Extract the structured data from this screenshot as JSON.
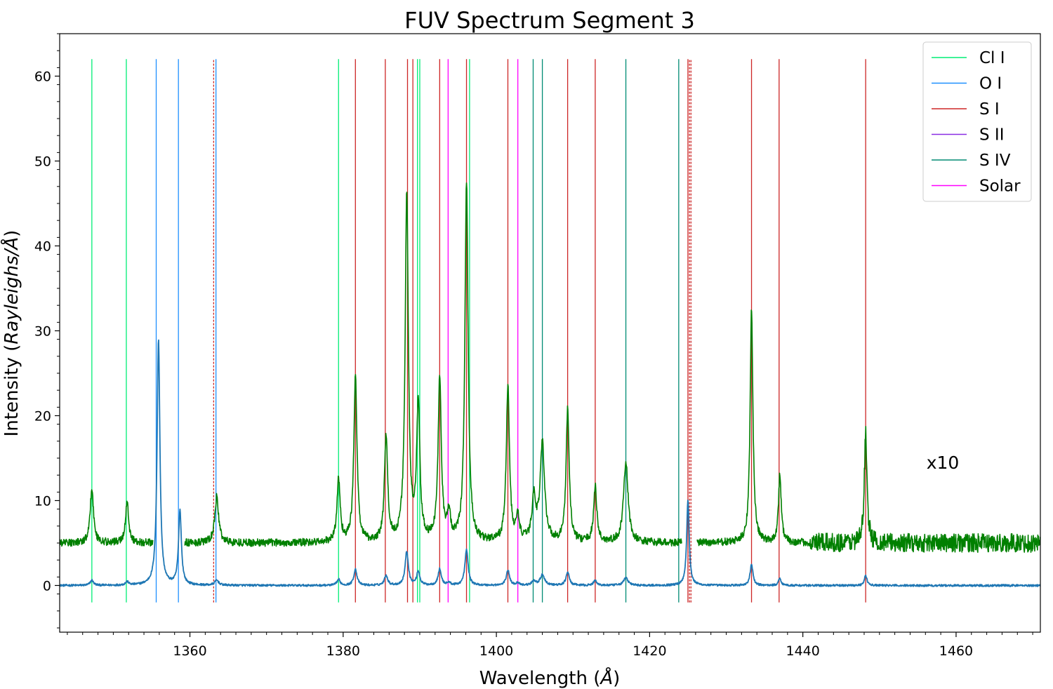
{
  "chart_data": {
    "type": "line",
    "title": "FUV Spectrum Segment 3",
    "xlabel_prefix": "Wavelength (",
    "xlabel_unit": "Å",
    "xlabel_suffix": ")",
    "ylabel_prefix": "Intensity (",
    "ylabel_unit": "Rayleighs/Å",
    "ylabel_suffix": ")",
    "xlim": [
      1343,
      1471
    ],
    "ylim": [
      -5.5,
      65
    ],
    "x_ticks": [
      1360,
      1380,
      1400,
      1420,
      1440,
      1460
    ],
    "y_ticks": [
      0,
      10,
      20,
      30,
      40,
      50,
      60
    ],
    "annotation": "x10",
    "legend_position": "upper right",
    "series": [
      {
        "name": "",
        "color": "#1f77b4",
        "baseline": 0.0,
        "noise": 0.12,
        "peaks": [
          [
            1347.2,
            0.6,
            0.25
          ],
          [
            1351.8,
            0.4,
            0.25
          ],
          [
            1355.9,
            29.0,
            0.22
          ],
          [
            1358.7,
            8.8,
            0.22
          ],
          [
            1363.5,
            0.6,
            0.3
          ],
          [
            1379.4,
            0.7,
            0.25
          ],
          [
            1381.6,
            1.9,
            0.25
          ],
          [
            1385.6,
            1.2,
            0.25
          ],
          [
            1388.3,
            4.0,
            0.25
          ],
          [
            1389.8,
            1.6,
            0.25
          ],
          [
            1392.6,
            1.9,
            0.25
          ],
          [
            1393.8,
            0.3,
            0.25
          ],
          [
            1396.1,
            4.2,
            0.25
          ],
          [
            1401.5,
            1.8,
            0.25
          ],
          [
            1402.8,
            0.3,
            0.25
          ],
          [
            1404.9,
            0.5,
            0.3
          ],
          [
            1406.0,
            1.2,
            0.35
          ],
          [
            1409.3,
            1.6,
            0.25
          ],
          [
            1412.9,
            0.6,
            0.25
          ],
          [
            1416.9,
            0.9,
            0.35
          ],
          [
            1425.0,
            10.0,
            0.2
          ],
          [
            1433.3,
            2.5,
            0.22
          ],
          [
            1437.0,
            0.8,
            0.22
          ],
          [
            1448.2,
            1.2,
            0.2
          ]
        ]
      },
      {
        "name": "",
        "color": "#008000",
        "baseline": 5.0,
        "noise": 0.45,
        "gaps": [
          [
            1355.2,
            1359.3
          ],
          [
            1424.2,
            1426.2
          ]
        ],
        "noisy_ranges": [
          [
            1441,
            1471,
            1.1
          ]
        ],
        "peaks": [
          [
            1347.2,
            6.6,
            0.25
          ],
          [
            1351.8,
            4.8,
            0.25
          ],
          [
            1363.5,
            5.4,
            0.3
          ],
          [
            1379.4,
            7.4,
            0.25
          ],
          [
            1381.6,
            19.5,
            0.25
          ],
          [
            1385.6,
            12.3,
            0.25
          ],
          [
            1388.3,
            41.0,
            0.25
          ],
          [
            1389.8,
            16.0,
            0.25
          ],
          [
            1392.6,
            19.5,
            0.25
          ],
          [
            1393.8,
            3.0,
            0.25
          ],
          [
            1396.1,
            42.5,
            0.25
          ],
          [
            1401.5,
            18.3,
            0.25
          ],
          [
            1402.8,
            2.8,
            0.25
          ],
          [
            1404.9,
            5.0,
            0.3
          ],
          [
            1406.0,
            11.5,
            0.35
          ],
          [
            1409.3,
            15.5,
            0.25
          ],
          [
            1412.9,
            6.5,
            0.25
          ],
          [
            1416.9,
            9.5,
            0.35
          ],
          [
            1433.3,
            27.5,
            0.22
          ],
          [
            1437.0,
            8.0,
            0.22
          ],
          [
            1448.2,
            13.5,
            0.2
          ]
        ]
      }
    ],
    "line_markers": {
      "y_range": [
        -2,
        62
      ],
      "groups": [
        {
          "name": "Cl I",
          "color": "#00ee76",
          "x": [
            1347.2,
            1351.7,
            1379.4,
            1389.7,
            1390.0,
            1396.5
          ]
        },
        {
          "name": "O I",
          "color": "#1e90ff",
          "x": [
            1355.6,
            1358.5,
            1363.4
          ]
        },
        {
          "name": "S I",
          "color": "#cd2626",
          "x": [
            1363.1,
            1381.6,
            1385.5,
            1388.4,
            1389.1,
            1392.6,
            1396.1,
            1401.5,
            1409.3,
            1412.9,
            1425.0,
            1425.2,
            1425.4,
            1433.3,
            1436.9,
            1448.2
          ],
          "dashed": [
            1363.1,
            1425.2,
            1425.4
          ]
        },
        {
          "name": "S II",
          "color": "#8a2be2",
          "x": []
        },
        {
          "name": "S IV",
          "color": "#008b74",
          "x": [
            1404.8,
            1406.0,
            1416.9,
            1423.8
          ]
        },
        {
          "name": "Solar",
          "color": "#ff00ff",
          "x": [
            1393.7,
            1402.8
          ]
        }
      ]
    }
  }
}
